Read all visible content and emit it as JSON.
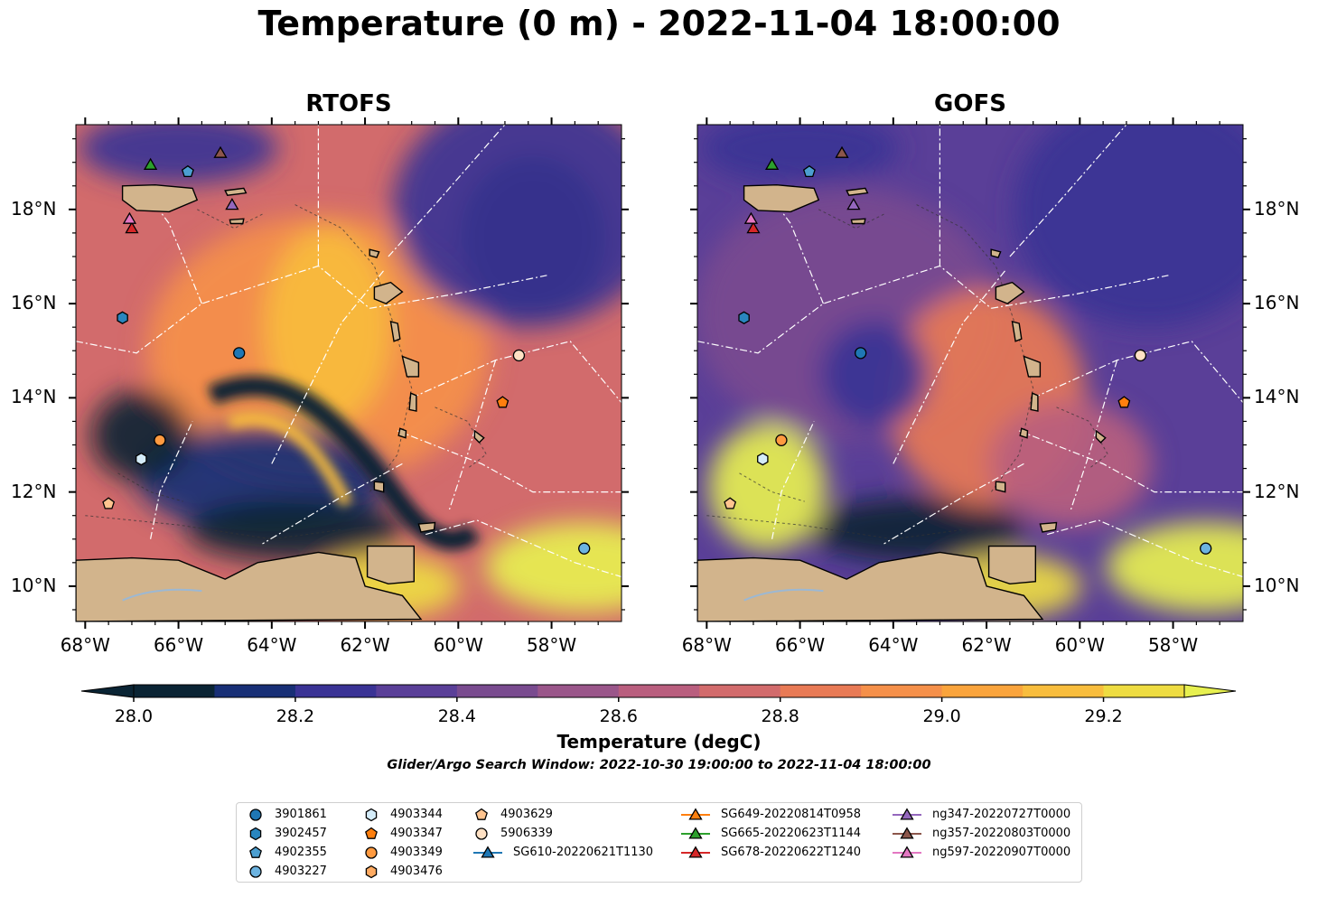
{
  "title": "Temperature (0 m) - 2022-11-04 18:00:00",
  "panels": [
    {
      "title": "RTOFS"
    },
    {
      "title": "GOFS"
    }
  ],
  "lon_ticks": [
    "68°W",
    "66°W",
    "64°W",
    "62°W",
    "60°W",
    "58°W"
  ],
  "lat_ticks": [
    "18°N",
    "16°N",
    "14°N",
    "12°N",
    "10°N"
  ],
  "colorbar": {
    "label": "Temperature (degC)",
    "ticks": [
      "28.0",
      "28.2",
      "28.4",
      "28.6",
      "28.8",
      "29.0",
      "29.2"
    ],
    "colors": [
      "#0a2434",
      "#182f76",
      "#3a3395",
      "#5a3f98",
      "#794b8f",
      "#9a568a",
      "#b95e7e",
      "#d26b6c",
      "#e87a55",
      "#f5904a",
      "#faa43c",
      "#f8bd3d",
      "#eedc42",
      "#e7f050"
    ],
    "min_color": "#0a2434",
    "max_color": "#e7f050"
  },
  "search_window": "Glider/Argo Search Window: 2022-10-30 19:00:00 to 2022-11-04 18:00:00",
  "legend": [
    {
      "label": "3901861",
      "marker": "circle",
      "color": "#1f77b4"
    },
    {
      "label": "3902457",
      "marker": "hexagon",
      "color": "#2a86bf"
    },
    {
      "label": "4902355",
      "marker": "pentagon",
      "color": "#4c9fd1"
    },
    {
      "label": "4903227",
      "marker": "circle",
      "color": "#6cb3e0"
    },
    {
      "label": "4903344",
      "marker": "hexagon",
      "color": "#d4ecf9"
    },
    {
      "label": "4903347",
      "marker": "pentagon",
      "color": "#ff7f0e"
    },
    {
      "label": "4903349",
      "marker": "circle",
      "color": "#ff9a40"
    },
    {
      "label": "4903476",
      "marker": "hexagon",
      "color": "#ffab62"
    },
    {
      "label": "4903629",
      "marker": "pentagon",
      "color": "#ffc48f"
    },
    {
      "label": "5906339",
      "marker": "circle",
      "color": "#ffe1c4"
    },
    {
      "label": "SG610-20220621T1130",
      "marker": "triangle-line",
      "color": "#1f77b4"
    },
    {
      "label": "SG649-20220814T0958",
      "marker": "triangle-line",
      "color": "#ff7f0e"
    },
    {
      "label": "SG665-20220623T1144",
      "marker": "triangle-line",
      "color": "#2ca02c"
    },
    {
      "label": "SG678-20220622T1240",
      "marker": "triangle-line",
      "color": "#d62728"
    },
    {
      "label": "ng347-20220727T0000",
      "marker": "triangle-line",
      "color": "#9467bd"
    },
    {
      "label": "ng357-20220803T0000",
      "marker": "triangle-line",
      "color": "#8c564b"
    },
    {
      "label": "ng597-20220907T0000",
      "marker": "triangle-line",
      "color": "#e377c2"
    }
  ],
  "map_markers": [
    {
      "label": "3901861",
      "lon": -64.7,
      "lat": 14.95
    },
    {
      "label": "3902457",
      "lon": -67.2,
      "lat": 15.7
    },
    {
      "label": "4902355",
      "lon": -65.8,
      "lat": 18.8
    },
    {
      "label": "4903227",
      "lon": -57.3,
      "lat": 10.8
    },
    {
      "label": "4903344",
      "lon": -66.8,
      "lat": 12.7
    },
    {
      "label": "4903347",
      "lon": -59.05,
      "lat": 13.9
    },
    {
      "label": "4903349",
      "lon": -66.4,
      "lat": 13.1
    },
    {
      "label": "4903629",
      "lon": -67.5,
      "lat": 11.75
    },
    {
      "label": "5906339",
      "lon": -58.7,
      "lat": 14.9
    },
    {
      "label": "SG665-20220623T1144",
      "lon": -66.6,
      "lat": 18.95
    },
    {
      "label": "SG678-20220622T1240",
      "lon": -67.0,
      "lat": 17.6
    },
    {
      "label": "ng347-20220727T0000",
      "lon": -64.85,
      "lat": 18.1
    },
    {
      "label": "ng357-20220803T0000",
      "lon": -65.1,
      "lat": 19.2
    },
    {
      "label": "ng597-20220907T0000",
      "lon": -67.05,
      "lat": 17.8
    }
  ],
  "map_extent": {
    "lon": [
      -68.2,
      -56.5
    ],
    "lat": [
      9.25,
      19.8
    ]
  }
}
